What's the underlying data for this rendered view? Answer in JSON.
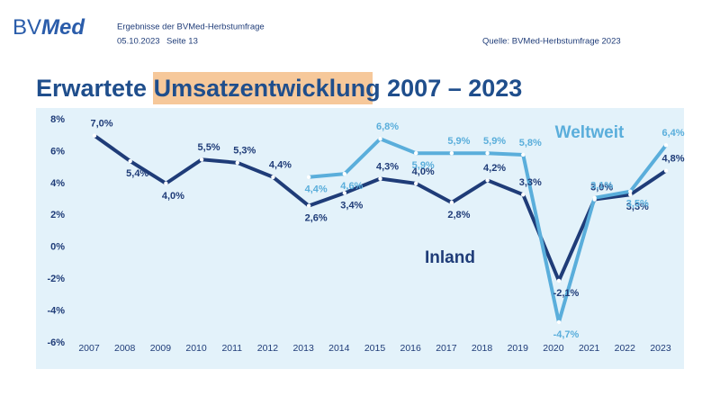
{
  "header": {
    "logo_1": "BV",
    "logo_2": "Med",
    "subtitle": "Ergebnisse der BVMed-Herbstumfrage",
    "date": "05.10.2023",
    "page": "Seite 13",
    "source": "Quelle: BVMed-Herbstumfrage 2023"
  },
  "chart_data": {
    "type": "line",
    "title": {
      "before": "Erwartete",
      "highlight": "Umsatzentwicklung",
      "after": "2007 – 2023"
    },
    "categories": [
      "2007",
      "2008",
      "2009",
      "2010",
      "2011",
      "2012",
      "2013",
      "2014",
      "2015",
      "2016",
      "2017",
      "2018",
      "2019",
      "2020",
      "2021",
      "2022",
      "2023"
    ],
    "series": [
      {
        "name": "Inland",
        "color": "#1f3c78",
        "values": [
          7.0,
          5.4,
          4.0,
          5.5,
          5.3,
          4.4,
          2.6,
          3.4,
          4.3,
          4.0,
          2.8,
          4.2,
          3.3,
          -2.1,
          3.0,
          3.3,
          4.8
        ],
        "value_labels": [
          "7,0%",
          "5,4%",
          "4,0%",
          "5,5%",
          "5,3%",
          "4,4%",
          "2,6%",
          "3,4%",
          "4,3%",
          "4,0%",
          "2,8%",
          "4,2%",
          "3,3%",
          "-2,1%",
          "3,0%",
          "3,3%",
          "4,8%"
        ]
      },
      {
        "name": "Weltweit",
        "color": "#5aaedb",
        "values": [
          null,
          null,
          null,
          null,
          null,
          null,
          4.4,
          4.6,
          6.8,
          5.9,
          5.9,
          5.9,
          5.8,
          -4.7,
          3.1,
          3.5,
          6.4
        ],
        "value_labels": [
          null,
          null,
          null,
          null,
          null,
          null,
          "4,4%",
          "4,6%",
          "6,8%",
          "5,9%",
          "5,9%",
          "5,9%",
          "5,8%",
          "-4,7%",
          "3,1%",
          "3,5%",
          "6,4%"
        ]
      }
    ],
    "ylim": [
      -6,
      8
    ],
    "yticks": [
      {
        "value": -6,
        "label": "-6%"
      },
      {
        "value": -4,
        "label": "-4%"
      },
      {
        "value": -2,
        "label": "-2%"
      },
      {
        "value": 0,
        "label": "0%"
      },
      {
        "value": 2,
        "label": "2%"
      },
      {
        "value": 4,
        "label": "4%"
      },
      {
        "value": 6,
        "label": "6%"
      },
      {
        "value": 8,
        "label": "8%"
      }
    ],
    "grid": false
  }
}
